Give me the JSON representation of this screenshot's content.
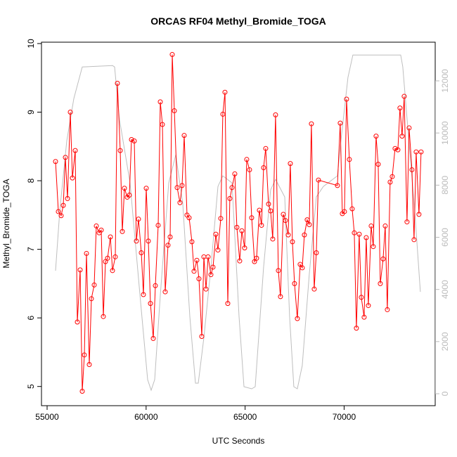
{
  "chart_data": {
    "type": "line",
    "title": "ORCAS RF04 Methyl_Bromide_TOGA",
    "xlabel": "UTC Seconds",
    "ylabel": "Methyl_Bromide_TOGA",
    "xlim": [
      54716,
      74600
    ],
    "ylim": [
      4.72,
      10.02
    ],
    "y2lim": [
      -458,
      13483
    ],
    "xticks": [
      55000,
      60000,
      65000,
      70000
    ],
    "yticks": [
      5,
      6,
      7,
      8,
      9,
      10
    ],
    "y2ticks": [
      0,
      2000,
      4000,
      6000,
      8000,
      10000,
      12000
    ],
    "series": [
      {
        "color": "#ff0000",
        "marker": "circle",
        "x": [
          55426,
          55568,
          55710,
          55817,
          55923,
          56030,
          56172,
          56278,
          56420,
          56527,
          56669,
          56775,
          56882,
          56988,
          57130,
          57237,
          57379,
          57485,
          57627,
          57734,
          57840,
          57947,
          58053,
          58195,
          58302,
          58444,
          58550,
          58692,
          58799,
          58905,
          59047,
          59154,
          59260,
          59402,
          59509,
          59615,
          59757,
          59864,
          60006,
          60112,
          60219,
          60361,
          60467,
          60609,
          60716,
          60822,
          60964,
          61106,
          61213,
          61319,
          61426,
          61568,
          61710,
          61816,
          61923,
          62065,
          62171,
          62313,
          62420,
          62562,
          62668,
          62810,
          62917,
          63023,
          63130,
          63272,
          63378,
          63520,
          63627,
          63769,
          63875,
          63982,
          64124,
          64230,
          64337,
          64479,
          64585,
          64727,
          64834,
          64976,
          65082,
          65224,
          65331,
          65473,
          65579,
          65721,
          65828,
          65934,
          66041,
          66183,
          66289,
          66396,
          66538,
          66680,
          66786,
          66928,
          67035,
          67177,
          67283,
          67390,
          67496,
          67638,
          67780,
          67887,
          67993,
          68135,
          68242,
          68348,
          68490,
          68597,
          68703,
          69662,
          69804,
          69910,
          70017,
          70123,
          70265,
          70407,
          70514,
          70620,
          70762,
          70869,
          71011,
          71117,
          71224,
          71366,
          71472,
          71614,
          71721,
          71827,
          71969,
          72076,
          72182,
          72324,
          72431,
          72573,
          72715,
          72821,
          72928,
          73034,
          73176,
          73283,
          73425,
          73531,
          73638,
          73780,
          73886
        ],
        "values": [
          8.28,
          7.55,
          7.49,
          7.64,
          8.34,
          7.74,
          9.0,
          8.04,
          8.44,
          5.94,
          6.7,
          4.93,
          5.46,
          6.94,
          5.32,
          6.28,
          6.48,
          7.34,
          7.24,
          7.28,
          6.02,
          6.82,
          6.87,
          7.18,
          6.69,
          6.89,
          9.42,
          8.44,
          7.26,
          7.89,
          7.76,
          7.79,
          8.6,
          8.58,
          7.12,
          7.44,
          6.95,
          6.34,
          7.89,
          7.12,
          6.21,
          5.7,
          6.47,
          7.35,
          9.15,
          8.82,
          6.38,
          7.06,
          7.18,
          9.84,
          9.02,
          7.9,
          7.68,
          7.93,
          8.66,
          7.5,
          7.46,
          7.11,
          6.68,
          6.84,
          6.57,
          5.73,
          6.89,
          6.42,
          6.89,
          6.63,
          6.74,
          7.22,
          6.99,
          7.45,
          8.97,
          9.29,
          6.21,
          7.74,
          7.9,
          8.1,
          7.32,
          6.83,
          7.27,
          7.02,
          8.31,
          8.16,
          7.46,
          6.82,
          6.87,
          7.57,
          7.35,
          8.19,
          8.47,
          7.66,
          7.56,
          7.15,
          8.96,
          6.69,
          6.31,
          7.51,
          7.42,
          7.21,
          8.25,
          7.11,
          6.5,
          5.99,
          6.78,
          6.73,
          7.21,
          7.43,
          7.36,
          8.83,
          6.42,
          6.95,
          8.01,
          7.93,
          8.84,
          7.52,
          7.55,
          9.19,
          8.31,
          7.59,
          7.24,
          5.85,
          7.22,
          6.3,
          6.01,
          7.17,
          6.18,
          7.34,
          7.04,
          8.65,
          8.24,
          6.5,
          6.86,
          7.34,
          6.12,
          7.98,
          8.06,
          8.47,
          8.45,
          9.06,
          8.65,
          9.23,
          7.4,
          8.77,
          8.16,
          7.14,
          8.42,
          7.51,
          8.42
        ]
      },
      {
        "color": "#bebebe",
        "axis": "y2",
        "x": [
          55426,
          55639,
          55994,
          56349,
          56775,
          58302,
          58408,
          58657,
          59190,
          59722,
          60077,
          60254,
          60432,
          60716,
          61142,
          61497,
          61852,
          62207,
          62491,
          62633,
          62917,
          63272,
          63627,
          63875,
          64337,
          64692,
          64941,
          65331,
          65509,
          65934,
          66289,
          66538,
          67000,
          67248,
          67461,
          67638,
          67887,
          68242,
          68597,
          68952,
          69662,
          69839,
          70194,
          70443,
          71792,
          72857,
          72963,
          73212,
          73567,
          73851
        ],
        "values": [
          4717,
          7008,
          9704,
          11321,
          12534,
          12588,
          12534,
          10512,
          8086,
          3504,
          539,
          135,
          539,
          3774,
          8086,
          9164,
          7278,
          2965,
          404,
          404,
          2156,
          4852,
          7951,
          8356,
          8086,
          2965,
          270,
          189,
          270,
          4852,
          7817,
          8221,
          7547,
          2965,
          270,
          189,
          1078,
          4582,
          7547,
          7951,
          8356,
          9704,
          12129,
          12992,
          12992,
          12992,
          12534,
          10243,
          7008,
          3908
        ]
      }
    ]
  }
}
